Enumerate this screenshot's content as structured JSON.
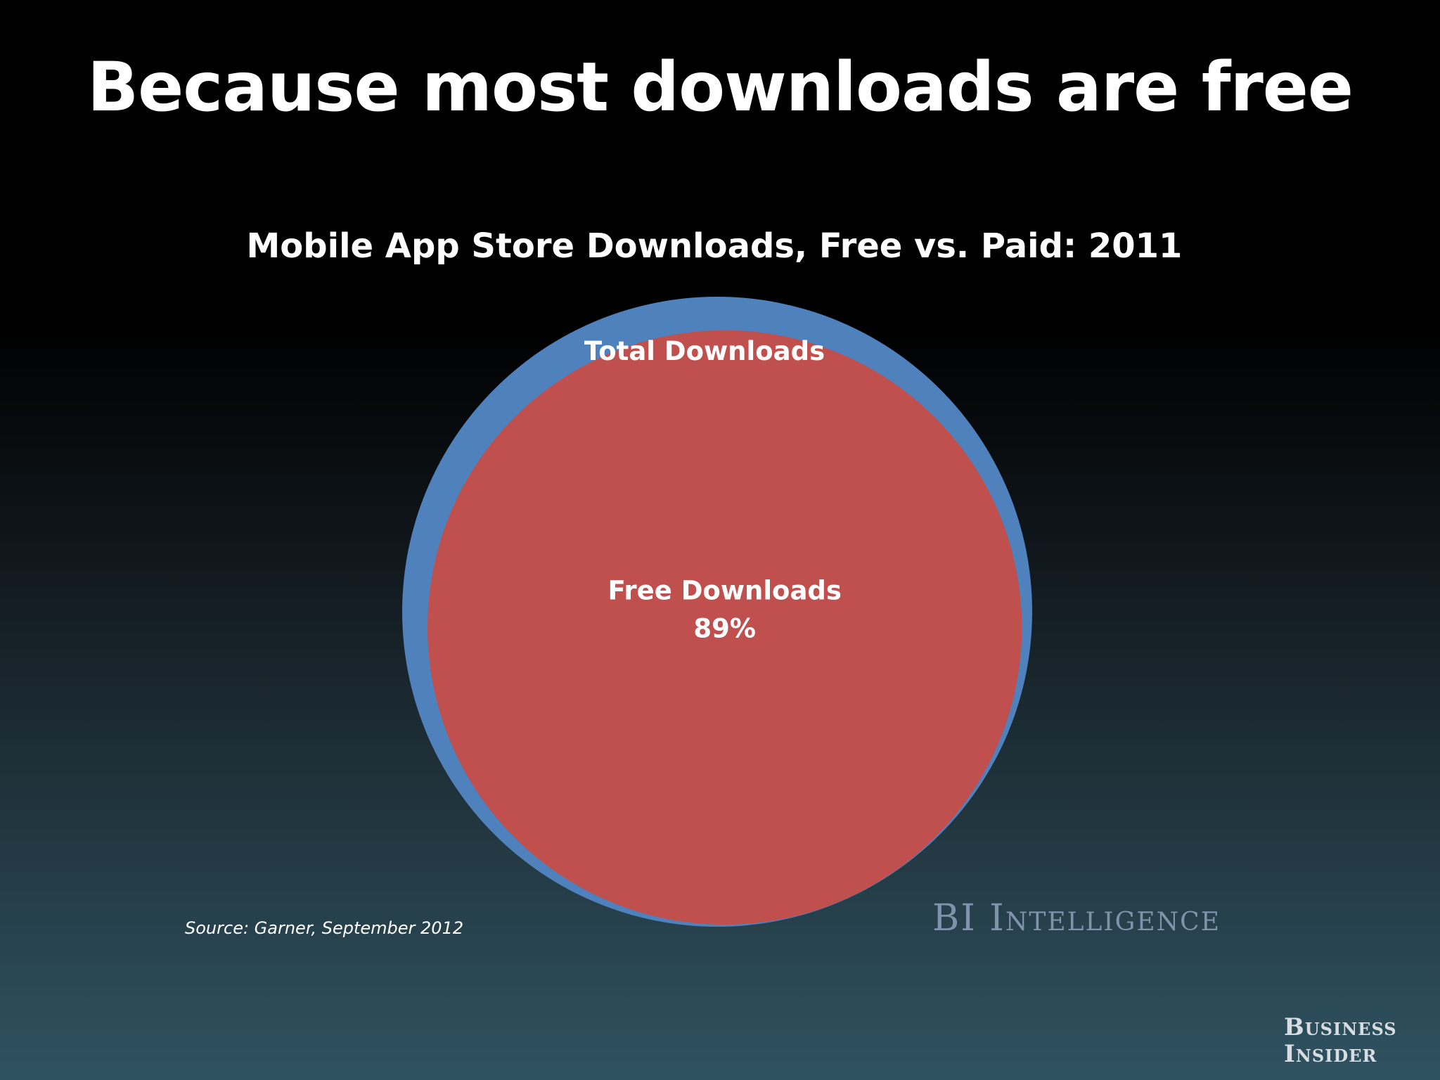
{
  "slide": {
    "title": "Because most downloads are free",
    "source": "Source: Garner, September 2012",
    "watermark": "BI Intelligence",
    "logo_line1": "Business",
    "logo_line2": "Insider"
  },
  "chart_data": {
    "type": "venn",
    "title": "Mobile App Store Downloads, Free vs. Paid: 2011",
    "sets": [
      {
        "label": "Total Downloads",
        "value_pct": 100,
        "color": "#4f81bd"
      },
      {
        "label": "Free Downloads",
        "value_text": "89%",
        "value_pct": 89,
        "color": "#c0504d"
      }
    ]
  }
}
